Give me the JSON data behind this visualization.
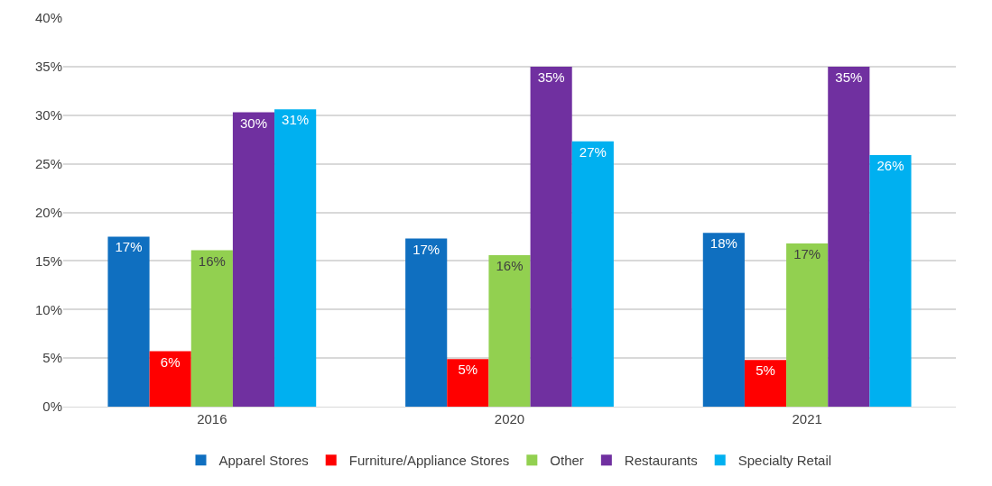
{
  "chart_data": {
    "type": "bar",
    "categories": [
      "2016",
      "2020",
      "2021"
    ],
    "series": [
      {
        "name": "Apparel Stores",
        "color": "#0f6fc0",
        "values": [
          17.5,
          17.3,
          17.9
        ],
        "value_labels": [
          "17%",
          "17%",
          "18%"
        ]
      },
      {
        "name": "Furniture/Appliance Stores",
        "color": "#ff0000",
        "values": [
          5.7,
          4.9,
          4.8
        ],
        "value_labels": [
          "6%",
          "5%",
          "5%"
        ]
      },
      {
        "name": "Other",
        "color": "#92d050",
        "values": [
          16.1,
          15.6,
          16.8
        ],
        "value_labels": [
          "16%",
          "16%",
          "17%"
        ]
      },
      {
        "name": "Restaurants",
        "color": "#7030a0",
        "values": [
          30.3,
          35.0,
          35.0
        ],
        "value_labels": [
          "30%",
          "35%",
          "35%"
        ]
      },
      {
        "name": "Specialty Retail",
        "color": "#00b0f0",
        "values": [
          30.6,
          27.3,
          25.9
        ],
        "value_labels": [
          "31%",
          "27%",
          "26%"
        ]
      }
    ],
    "ylim": [
      0,
      40
    ],
    "yticks": [
      {
        "value": 0,
        "label": "0%"
      },
      {
        "value": 5,
        "label": "5%"
      },
      {
        "value": 10,
        "label": "10%"
      },
      {
        "value": 15,
        "label": "15%"
      },
      {
        "value": 20,
        "label": "20%"
      },
      {
        "value": 25,
        "label": "25%"
      },
      {
        "value": 30,
        "label": "30%"
      },
      {
        "value": 35,
        "label": "35%"
      },
      {
        "value": 40,
        "label": "40%"
      }
    ],
    "grid": "y",
    "legend": "bottom"
  }
}
